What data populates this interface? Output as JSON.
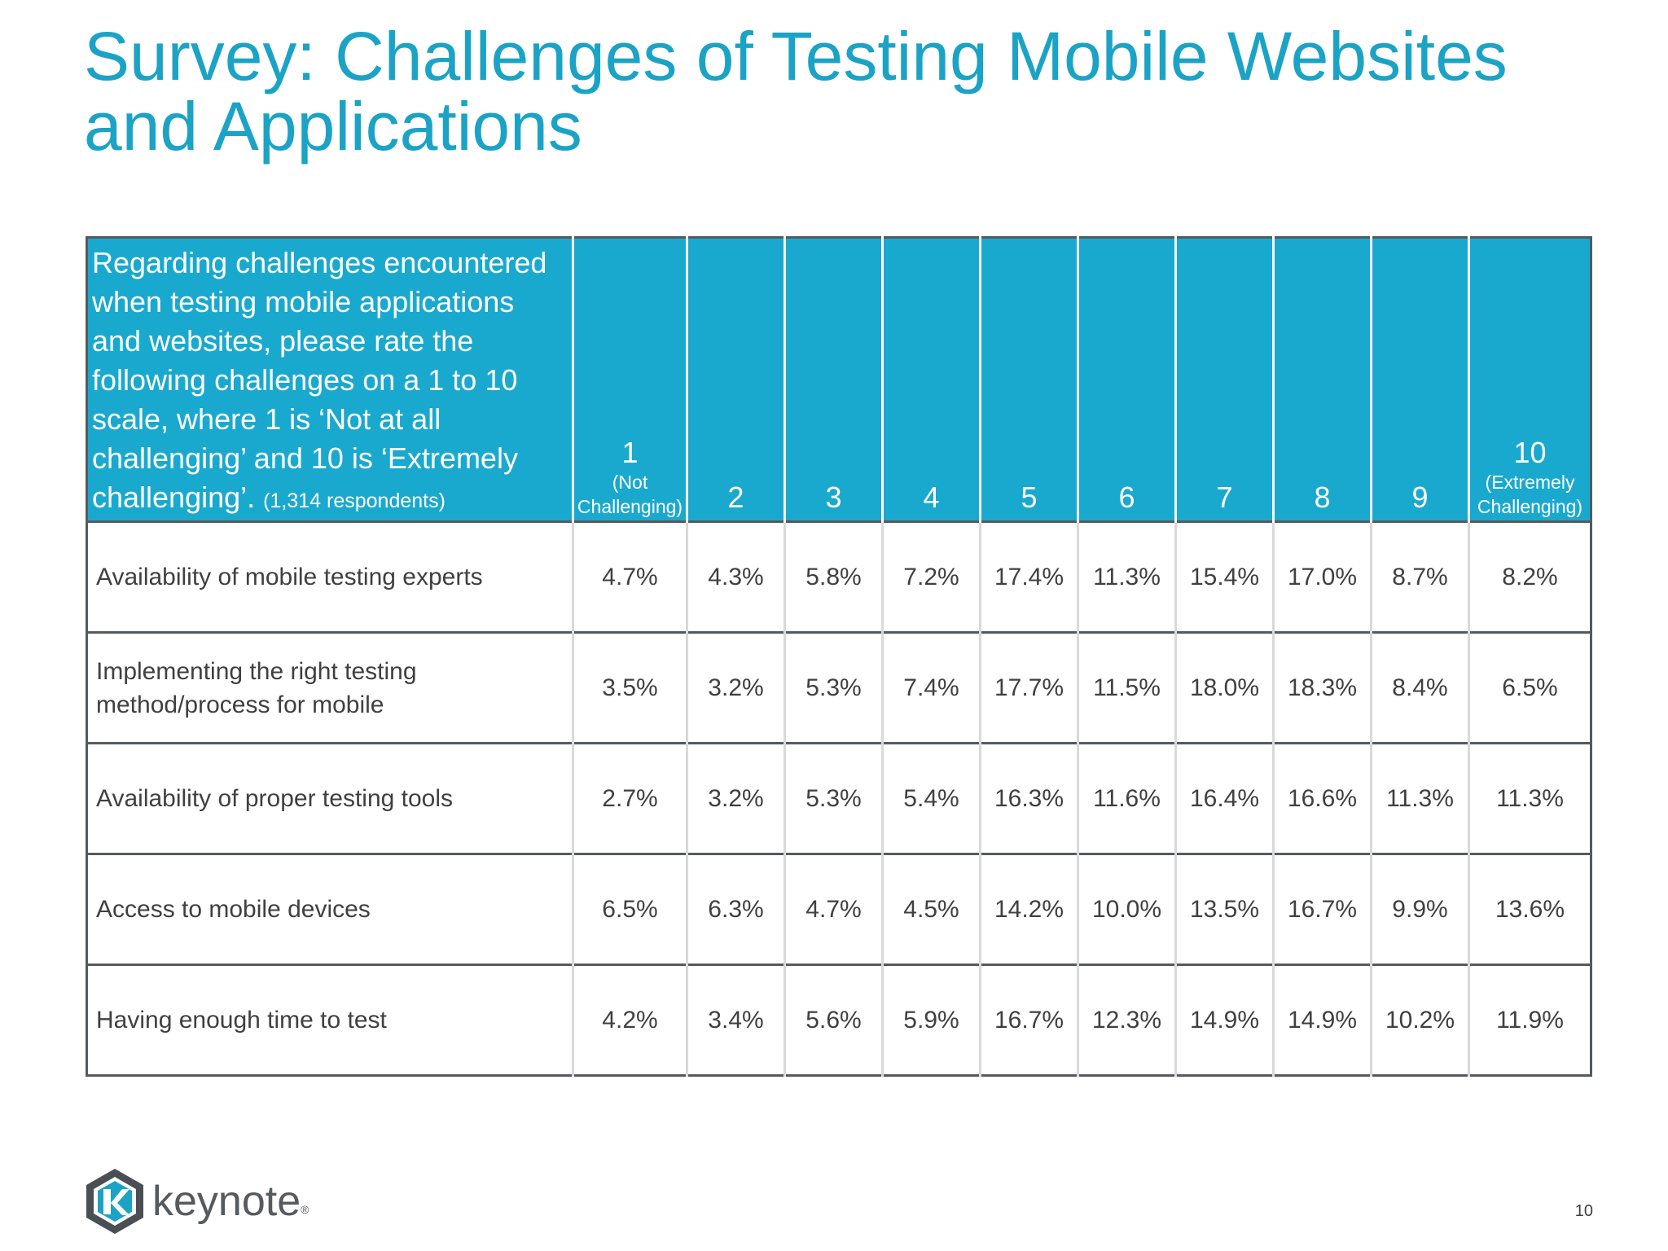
{
  "title": "Survey: Challenges of Testing Mobile Websites and Applications",
  "table": {
    "question": "Regarding challenges encountered when testing mobile applications and websites, please rate the following challenges on a 1 to 10 scale, where 1 is ‘Not at all challenging’ and 10 is ‘Extremely challenging’.",
    "respondents": "(1,314 respondents)",
    "levels": [
      {
        "num": "1",
        "caption_line1": "(Not",
        "caption_line2": "Challenging)"
      },
      {
        "num": "2"
      },
      {
        "num": "3"
      },
      {
        "num": "4"
      },
      {
        "num": "5"
      },
      {
        "num": "6"
      },
      {
        "num": "7"
      },
      {
        "num": "8"
      },
      {
        "num": "9"
      },
      {
        "num": "10",
        "caption_line1": "(Extremely",
        "caption_line2": "Challenging)"
      }
    ],
    "rows": [
      {
        "label_line1": "Availability of mobile testing experts",
        "label_line2": "",
        "values": [
          "4.7%",
          "4.3%",
          "5.8%",
          "7.2%",
          "17.4%",
          "11.3%",
          "15.4%",
          "17.0%",
          "8.7%",
          "8.2%"
        ]
      },
      {
        "label_line1": "Implementing the right testing",
        "label_line2": "method/process for mobile",
        "values": [
          "3.5%",
          "3.2%",
          "5.3%",
          "7.4%",
          "17.7%",
          "11.5%",
          "18.0%",
          "18.3%",
          "8.4%",
          "6.5%"
        ]
      },
      {
        "label_line1": "Availability of proper testing tools",
        "label_line2": "",
        "values": [
          "2.7%",
          "3.2%",
          "5.3%",
          "5.4%",
          "16.3%",
          "11.6%",
          "16.4%",
          "16.6%",
          "11.3%",
          "11.3%"
        ]
      },
      {
        "label_line1": "Access to mobile devices",
        "label_line2": "",
        "values": [
          "6.5%",
          "6.3%",
          "4.7%",
          "4.5%",
          "14.2%",
          "10.0%",
          "13.5%",
          "16.7%",
          "9.9%",
          "13.6%"
        ]
      },
      {
        "label_line1": "Having enough time to test",
        "label_line2": "",
        "values": [
          "4.2%",
          "3.4%",
          "5.6%",
          "5.9%",
          "16.7%",
          "12.3%",
          "14.9%",
          "14.9%",
          "10.2%",
          "11.9%"
        ]
      }
    ]
  },
  "logo": {
    "text": "keynote",
    "reg": "®"
  },
  "page_number": "10",
  "colors": {
    "accent": "#1ba3c6",
    "header_bg": "#1aa9ce",
    "text": "#404040",
    "logo": "#555a5f"
  }
}
